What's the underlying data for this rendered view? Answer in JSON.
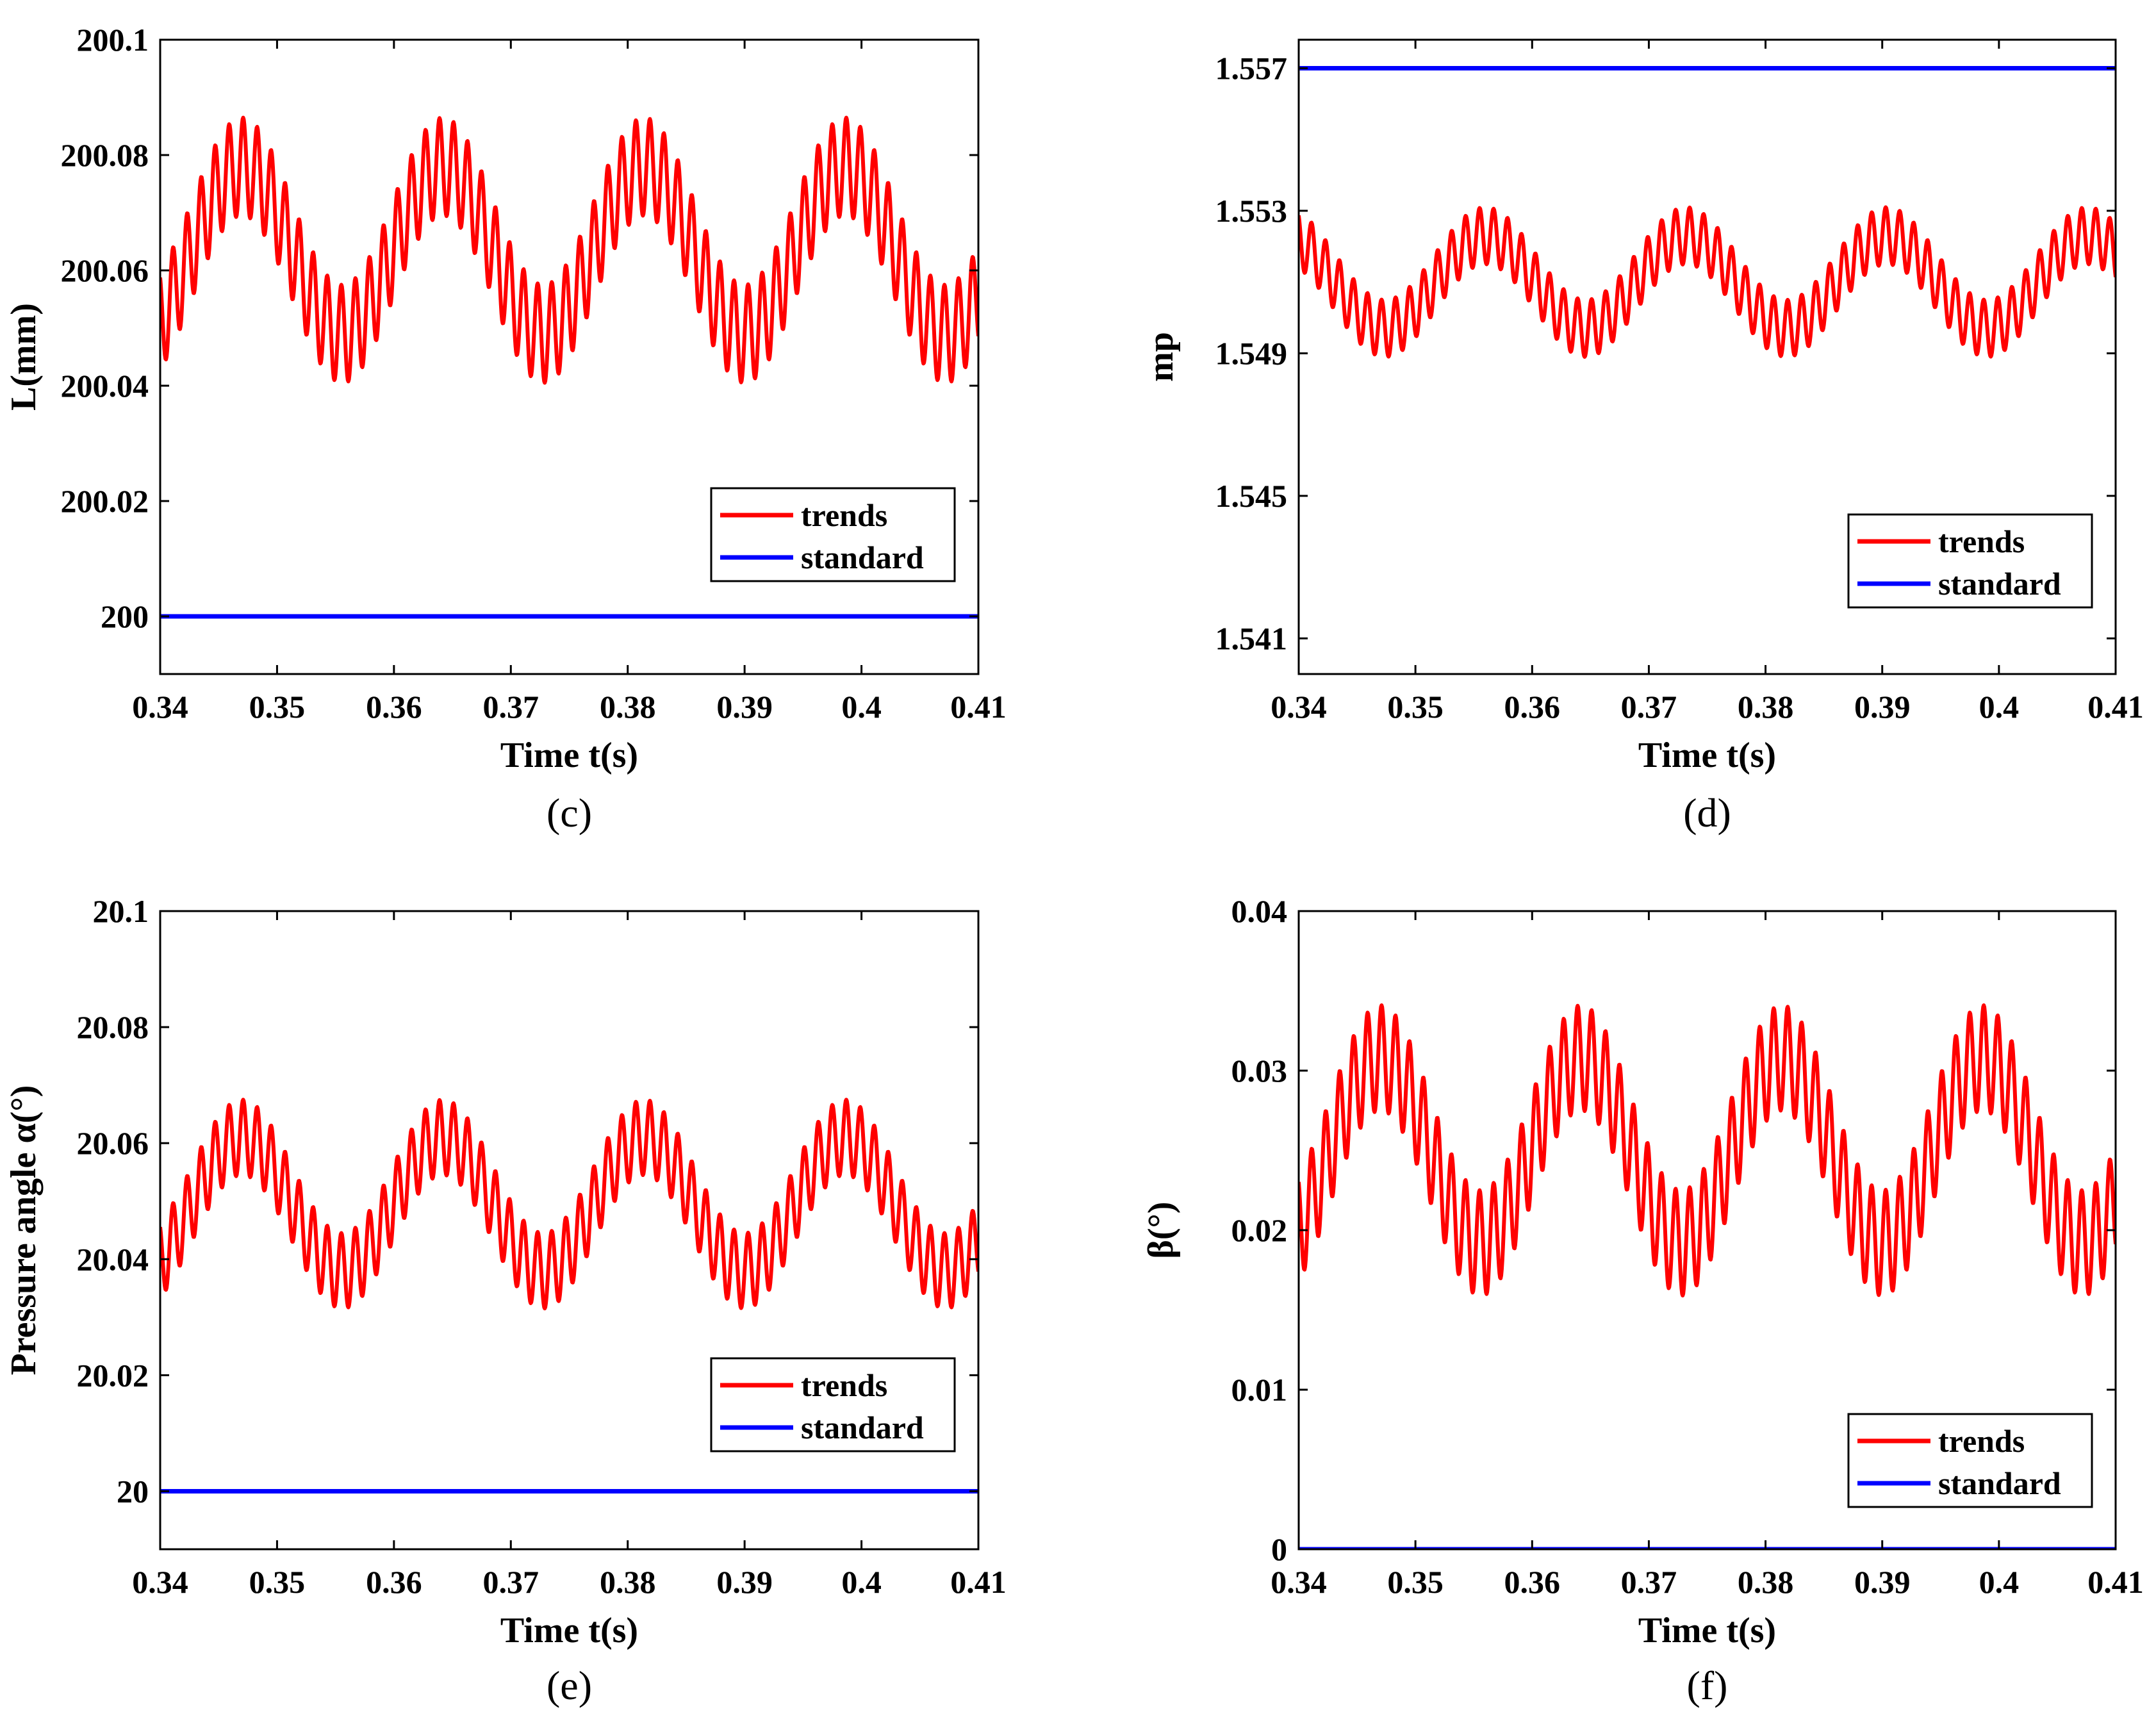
{
  "figure": {
    "panels": [
      {
        "caption": "(c)"
      },
      {
        "caption": "(d)"
      },
      {
        "caption": "(e)"
      },
      {
        "caption": "(f)"
      }
    ]
  },
  "chart_data": [
    {
      "type": "line",
      "panel": "(c)",
      "xlabel": "Time t(s)",
      "ylabel": "L(mm)",
      "xlim": [
        0.34,
        0.41
      ],
      "ylim": [
        199.99,
        200.1
      ],
      "xticks": [
        0.34,
        0.35,
        0.36,
        0.37,
        0.38,
        0.39,
        0.4,
        0.41
      ],
      "xtick_labels": [
        "0.34",
        "0.35",
        "0.36",
        "0.37",
        "0.38",
        "0.39",
        "0.4",
        "0.41"
      ],
      "yticks": [
        200,
        200.02,
        200.04,
        200.06,
        200.08,
        200.1
      ],
      "ytick_labels": [
        "200",
        "200.02",
        "200.04",
        "200.06",
        "200.08",
        "200.1"
      ],
      "legend": {
        "location": "lower-right",
        "entries": [
          "trends",
          "standard"
        ]
      },
      "series": [
        {
          "name": "trends",
          "color": "#ff0000",
          "kind": "oscillation",
          "mean": 200.0635,
          "low_amp": 0.0145,
          "low_period": 0.0172,
          "peak_time": 0.347,
          "high_amp": 0.0085,
          "high_period": 0.0012,
          "samples": 1400
        },
        {
          "name": "standard",
          "color": "#0000ff",
          "kind": "constant",
          "value": 200
        }
      ]
    },
    {
      "type": "line",
      "panel": "(d)",
      "xlabel": "Time t(s)",
      "ylabel": "mp",
      "xlim": [
        0.34,
        0.41
      ],
      "ylim": [
        1.54,
        1.5578
      ],
      "xticks": [
        0.34,
        0.35,
        0.36,
        0.37,
        0.38,
        0.39,
        0.4,
        0.41
      ],
      "xtick_labels": [
        "0.34",
        "0.35",
        "0.36",
        "0.37",
        "0.38",
        "0.39",
        "0.4",
        "0.41"
      ],
      "yticks": [
        1.541,
        1.545,
        1.549,
        1.553,
        1.557
      ],
      "ytick_labels": [
        "1.541",
        "1.545",
        "1.549",
        "1.553",
        "1.557"
      ],
      "legend": {
        "location": "lower-right",
        "entries": [
          "trends",
          "standard"
        ]
      },
      "series": [
        {
          "name": "trends",
          "color": "#ff0000",
          "kind": "oscillation",
          "mean": 1.551,
          "low_amp": 0.0013,
          "low_period": 0.0172,
          "peak_time": 0.356,
          "high_amp": 0.0008,
          "high_period": 0.0012,
          "samples": 1400
        },
        {
          "name": "standard",
          "color": "#0000ff",
          "kind": "constant",
          "value": 1.557
        }
      ]
    },
    {
      "type": "line",
      "panel": "(e)",
      "xlabel": "Time t(s)",
      "ylabel": "Pressure angle α(°)",
      "xlim": [
        0.34,
        0.41
      ],
      "ylim": [
        19.99,
        20.1
      ],
      "xticks": [
        0.34,
        0.35,
        0.36,
        0.37,
        0.38,
        0.39,
        0.4,
        0.41
      ],
      "xtick_labels": [
        "0.34",
        "0.35",
        "0.36",
        "0.37",
        "0.38",
        "0.39",
        "0.4",
        "0.41"
      ],
      "yticks": [
        20,
        20.02,
        20.04,
        20.06,
        20.08,
        20.1
      ],
      "ytick_labels": [
        "20",
        "20.02",
        "20.04",
        "20.06",
        "20.08",
        "20.1"
      ],
      "legend": {
        "location": "lower-right",
        "entries": [
          "trends",
          "standard"
        ]
      },
      "series": [
        {
          "name": "trends",
          "color": "#ff0000",
          "kind": "oscillation",
          "mean": 20.0495,
          "low_amp": 0.0115,
          "low_period": 0.0172,
          "peak_time": 0.347,
          "high_amp": 0.0065,
          "high_period": 0.0012,
          "samples": 1400
        },
        {
          "name": "standard",
          "color": "#0000ff",
          "kind": "constant",
          "value": 20
        }
      ]
    },
    {
      "type": "line",
      "panel": "(f)",
      "xlabel": "Time t(s)",
      "ylabel": "β(°)",
      "xlim": [
        0.34,
        0.41
      ],
      "ylim": [
        0,
        0.04
      ],
      "xticks": [
        0.34,
        0.35,
        0.36,
        0.37,
        0.38,
        0.39,
        0.4,
        0.41
      ],
      "xtick_labels": [
        "0.34",
        "0.35",
        "0.36",
        "0.37",
        "0.38",
        "0.39",
        "0.4",
        "0.41"
      ],
      "yticks": [
        0,
        0.01,
        0.02,
        0.03,
        0.04
      ],
      "ytick_labels": [
        "0",
        "0.01",
        "0.02",
        "0.03",
        "0.04"
      ],
      "legend": {
        "location": "lower-right",
        "entries": [
          "trends",
          "standard"
        ]
      },
      "series": [
        {
          "name": "trends",
          "color": "#ff0000",
          "kind": "oscillation",
          "mean": 0.025,
          "low_amp": 0.0058,
          "low_period": 0.0172,
          "peak_time": 0.347,
          "high_amp": 0.0033,
          "high_period": 0.0012,
          "samples": 1400
        },
        {
          "name": "standard",
          "color": "#0000ff",
          "kind": "constant",
          "value": 0
        }
      ]
    }
  ]
}
